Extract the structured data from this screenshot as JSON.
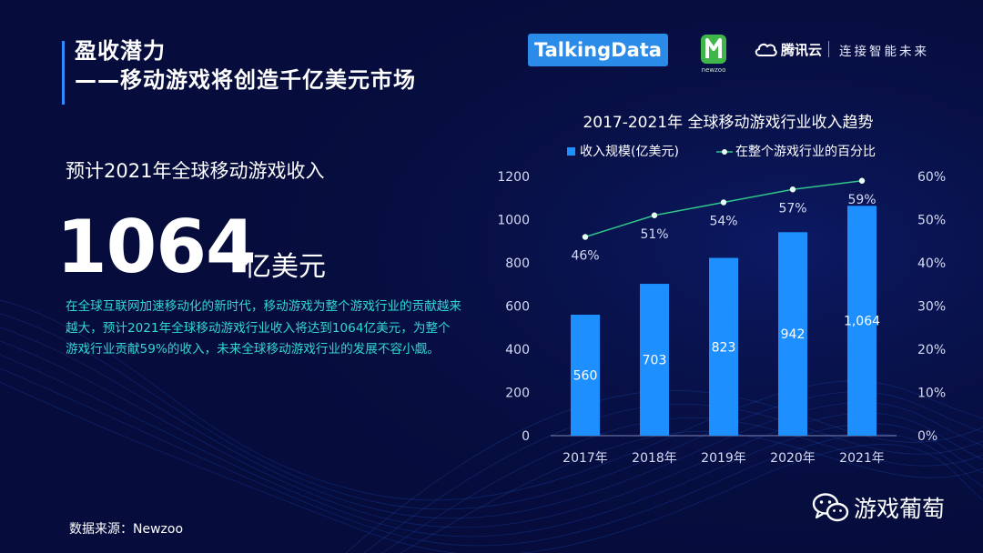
{
  "header": {
    "title_line1": "盈收潜力",
    "title_line2": "——移动游戏将创造千亿美元市场"
  },
  "logos": {
    "talkingdata": "TalkingData",
    "newzoo": "newzoo",
    "tencent_cloud": "腾讯云",
    "tencent_slogan": "连接智能未来"
  },
  "left": {
    "subtitle": "预计2021年全球移动游戏收入",
    "big_number": "1064",
    "big_unit": "亿美元",
    "description": "在全球互联网加速移动化的新时代，移动游戏为整个游戏行业的贡献越来越大，预计2021年全球移动游戏行业收入将达到1064亿美元，为整个游戏行业贡献59%的收入，未来全球移动游戏行业的发展不容小觑。",
    "source": "数据来源：Newzoo"
  },
  "footer": {
    "wechat_account": "游戏葡萄"
  },
  "colors": {
    "background": "#060d3d",
    "bar": "#1e8fff",
    "line": "#2fc58a",
    "accent_text": "#31d7d6"
  },
  "chart_data": {
    "type": "bar",
    "title": "2017-2021年  全球移动游戏行业收入趋势",
    "categories": [
      "2017年",
      "2018年",
      "2019年",
      "2020年",
      "2021年"
    ],
    "series": [
      {
        "name": "收入规模(亿美元)",
        "type": "bar",
        "axis": "left",
        "values": [
          560,
          703,
          823,
          942,
          1064
        ],
        "value_labels": [
          "560",
          "703",
          "823",
          "942",
          "1,064"
        ]
      },
      {
        "name": "在整个游戏行业的百分比",
        "type": "line",
        "axis": "right",
        "values": [
          46,
          51,
          54,
          57,
          59
        ],
        "value_labels": [
          "46%",
          "51%",
          "54%",
          "57%",
          "59%"
        ]
      }
    ],
    "ylim_left": [
      0,
      1200
    ],
    "yticks_left": [
      "0",
      "200",
      "400",
      "600",
      "800",
      "1000",
      "1200"
    ],
    "ylim_right": [
      0,
      60
    ],
    "yticks_right": [
      "0%",
      "10%",
      "20%",
      "30%",
      "40%",
      "50%",
      "60%"
    ],
    "legend_position": "top",
    "grid": false
  }
}
